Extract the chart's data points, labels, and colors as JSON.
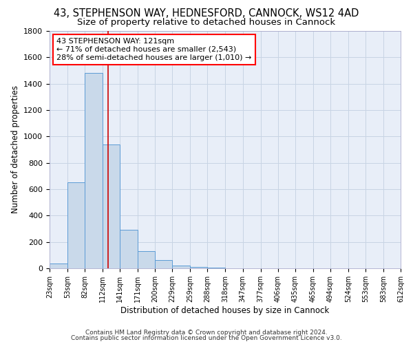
{
  "title1": "43, STEPHENSON WAY, HEDNESFORD, CANNOCK, WS12 4AD",
  "title2": "Size of property relative to detached houses in Cannock",
  "xlabel": "Distribution of detached houses by size in Cannock",
  "ylabel": "Number of detached properties",
  "bar_edges": [
    23,
    53,
    82,
    112,
    141,
    171,
    200,
    229,
    259,
    288,
    318,
    347,
    377,
    406,
    435,
    465,
    494,
    524,
    553,
    583,
    612
  ],
  "bar_heights": [
    38,
    650,
    1480,
    940,
    290,
    130,
    62,
    22,
    10,
    4,
    2,
    2,
    2,
    1,
    0,
    0,
    0,
    0,
    0,
    0
  ],
  "bar_color": "#c9d9ea",
  "bar_edge_color": "#5b9bd5",
  "bar_linewidth": 0.7,
  "vline_x": 121,
  "vline_color": "#cc0000",
  "vline_lw": 1.2,
  "annotation_text": "43 STEPHENSON WAY: 121sqm\n← 71% of detached houses are smaller (2,543)\n28% of semi-detached houses are larger (1,010) →",
  "ylim": [
    0,
    1800
  ],
  "yticks": [
    0,
    200,
    400,
    600,
    800,
    1000,
    1200,
    1400,
    1600,
    1800
  ],
  "grid_color": "#c8d4e4",
  "bg_color": "#e8eef8",
  "footnote1": "Contains HM Land Registry data © Crown copyright and database right 2024.",
  "footnote2": "Contains public sector information licensed under the Open Government Licence v3.0.",
  "title1_fontsize": 10.5,
  "title2_fontsize": 9.5,
  "tick_labels": [
    "23sqm",
    "53sqm",
    "82sqm",
    "112sqm",
    "141sqm",
    "171sqm",
    "200sqm",
    "229sqm",
    "259sqm",
    "288sqm",
    "318sqm",
    "347sqm",
    "377sqm",
    "406sqm",
    "435sqm",
    "465sqm",
    "494sqm",
    "524sqm",
    "553sqm",
    "583sqm",
    "612sqm"
  ]
}
